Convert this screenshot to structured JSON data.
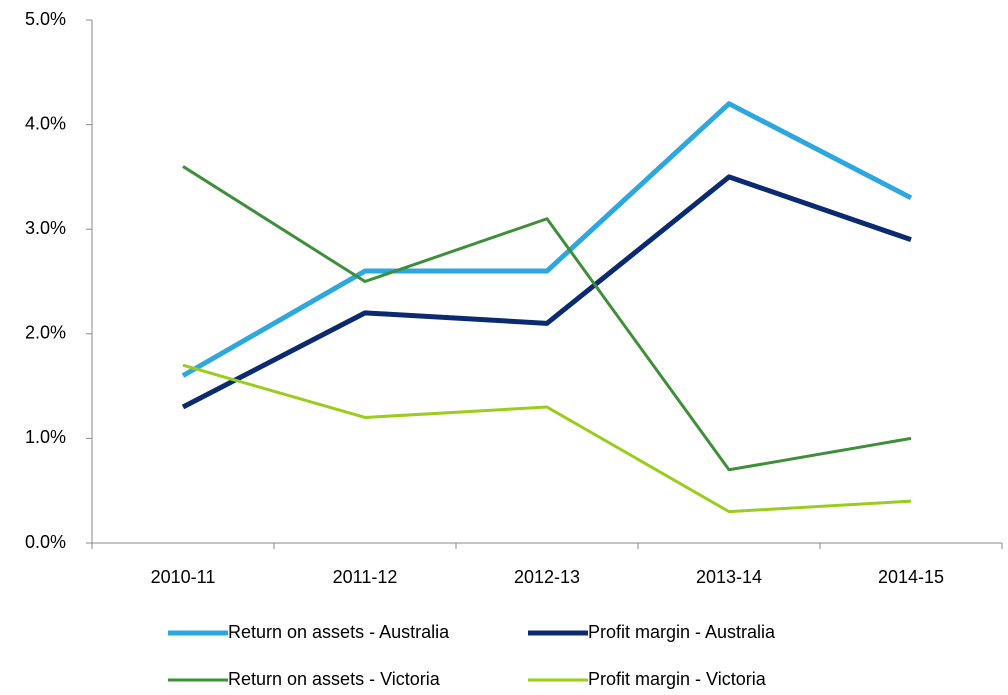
{
  "chart_data": {
    "type": "line",
    "categories": [
      "2010-11",
      "2011-12",
      "2012-13",
      "2013-14",
      "2014-15"
    ],
    "series": [
      {
        "name": "Return on assets - Australia",
        "color": "#2ea7de",
        "values": [
          1.6,
          2.6,
          2.6,
          4.2,
          3.3
        ]
      },
      {
        "name": "Profit margin - Australia",
        "color": "#0b2a6f",
        "values": [
          1.3,
          2.2,
          2.1,
          3.5,
          2.9
        ]
      },
      {
        "name": "Return on assets - Victoria",
        "color": "#3f8f3a",
        "values": [
          3.6,
          2.5,
          3.1,
          0.7,
          1.0
        ]
      },
      {
        "name": "Profit margin - Victoria",
        "color": "#9acd1e",
        "values": [
          1.7,
          1.2,
          1.3,
          0.3,
          0.4
        ]
      }
    ],
    "ylim": [
      0,
      5
    ],
    "yticks": [
      {
        "value": 0,
        "label": "0.0%"
      },
      {
        "value": 1,
        "label": "1.0%"
      },
      {
        "value": 2,
        "label": "2.0%"
      },
      {
        "value": 3,
        "label": "3.0%"
      },
      {
        "value": 4,
        "label": "4.0%"
      },
      {
        "value": 5,
        "label": "5.0%"
      }
    ],
    "legend": "bottom"
  }
}
